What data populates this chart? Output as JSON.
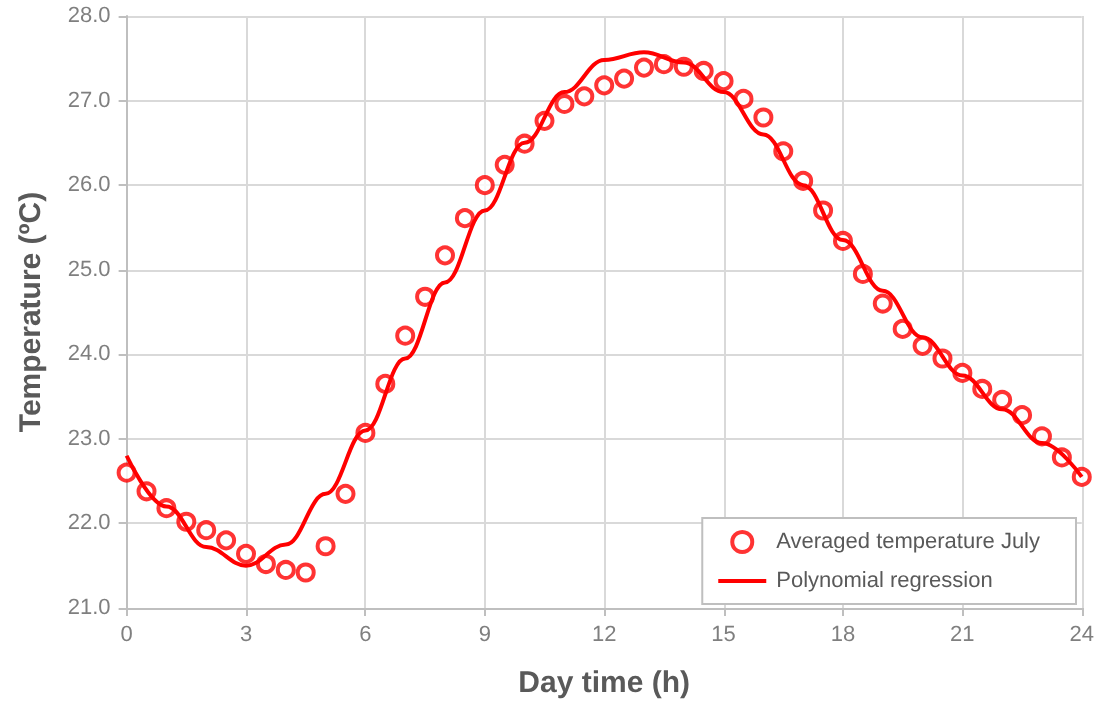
{
  "chart_data": {
    "type": "scatter",
    "xlabel": "Day time (h)",
    "ylabel": "Temperature (ºC)",
    "xlim": [
      0,
      24
    ],
    "xticks": [
      0,
      3,
      6,
      9,
      12,
      15,
      18,
      21,
      24
    ],
    "ylim": [
      21,
      28
    ],
    "yticks": [
      {
        "value": 21,
        "label": "21.0"
      },
      {
        "value": 22,
        "label": "22.0"
      },
      {
        "value": 23,
        "label": "23.0"
      },
      {
        "value": 24,
        "label": "24.0"
      },
      {
        "value": 25,
        "label": "25.0"
      },
      {
        "value": 26,
        "label": "26.0"
      },
      {
        "value": 27,
        "label": "27.0"
      },
      {
        "value": 28,
        "label": "28.0"
      }
    ],
    "grid": true,
    "legend": "bottom right",
    "series": [
      {
        "name": "Averaged temperature July",
        "marker": "circle",
        "color": "#ff0000",
        "x": [
          0,
          0.5,
          1,
          1.5,
          2,
          2.5,
          3,
          3.5,
          4,
          4.5,
          5,
          5.5,
          6,
          6.5,
          7,
          7.5,
          8,
          8.5,
          9,
          9.5,
          10,
          10.5,
          11,
          11.5,
          12,
          12.5,
          13,
          13.5,
          14,
          14.5,
          15,
          15.5,
          16,
          16.5,
          17,
          17.5,
          18,
          18.5,
          19,
          19.5,
          20,
          20.5,
          21,
          21.5,
          22,
          22.5,
          23,
          23.5,
          24
        ],
        "values": [
          22.6,
          22.38,
          22.18,
          22.02,
          21.92,
          21.8,
          21.64,
          21.52,
          21.45,
          21.42,
          21.73,
          22.35,
          23.07,
          23.65,
          24.22,
          24.68,
          25.17,
          25.61,
          26.0,
          26.24,
          26.49,
          26.76,
          26.96,
          27.05,
          27.18,
          27.26,
          27.39,
          27.43,
          27.4,
          27.35,
          27.23,
          27.02,
          26.8,
          26.4,
          26.05,
          25.7,
          25.34,
          24.95,
          24.6,
          24.3,
          24.1,
          23.95,
          23.78,
          23.59,
          23.46,
          23.28,
          23.03,
          22.78,
          22.55
        ]
      },
      {
        "name": "Polynomial regression",
        "type": "line",
        "marker": "none",
        "line_style": "solid",
        "color": "#ff0000",
        "x": [
          0,
          1,
          2,
          3,
          4,
          5,
          6,
          7,
          8,
          9,
          10,
          11,
          12,
          13,
          14,
          15,
          16,
          17,
          18,
          19,
          20,
          21,
          22,
          23,
          24
        ],
        "values": [
          22.8,
          22.2,
          21.72,
          21.5,
          21.75,
          22.35,
          23.1,
          23.95,
          24.85,
          25.7,
          26.5,
          27.1,
          27.48,
          27.57,
          27.45,
          27.1,
          26.6,
          26.0,
          25.35,
          24.75,
          24.2,
          23.75,
          23.35,
          22.95,
          22.55
        ]
      }
    ]
  }
}
